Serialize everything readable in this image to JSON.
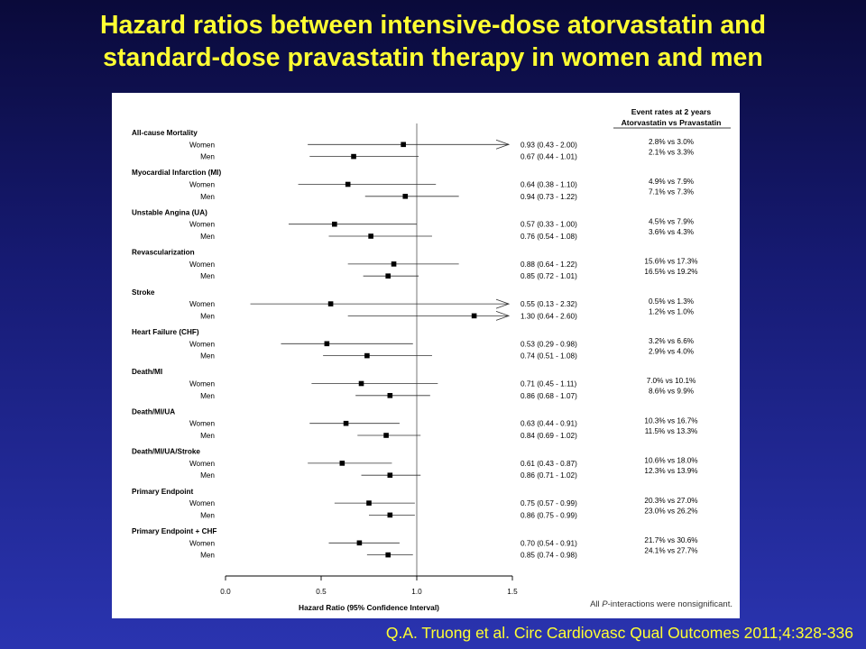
{
  "title": {
    "line1": "Hazard ratios between intensive-dose atorvastatin and",
    "line2": "standard-dose pravastatin therapy in women and men"
  },
  "citation": "Q.A. Truong et al. Circ Cardiovasc Qual Outcomes 2011;4:328-336",
  "colors": {
    "title": "#ffff33",
    "background_top": "#0a0a3a",
    "background_bottom": "#2a34b0",
    "panel": "#ffffff",
    "ink": "#000000"
  },
  "chart_data": {
    "type": "forest",
    "xlabel": "Hazard Ratio (95% Confidence Interval)",
    "xlim": [
      0.0,
      1.5
    ],
    "xticks": [
      "0.0",
      "0.5",
      "1.0",
      "1.5"
    ],
    "reference_line": 1.0,
    "event_rates_header": [
      "Event rates at 2 years",
      "Atorvastatin vs Pravastatin"
    ],
    "footnote_prefix": "All ",
    "footnote_italic": "P",
    "footnote_suffix": "-interactions  were nonsignificant.",
    "groups": [
      {
        "name": "All-cause Mortality",
        "rows": [
          {
            "label": "Women",
            "hr": 0.93,
            "lo": 0.43,
            "hi": 2.0,
            "ci_text": "0.93 (0.43 - 2.00)",
            "rates": "2.8% vs 3.0%",
            "arrow": true
          },
          {
            "label": "Men",
            "hr": 0.67,
            "lo": 0.44,
            "hi": 1.01,
            "ci_text": "0.67 (0.44 - 1.01)",
            "rates": "2.1% vs 3.3%"
          }
        ]
      },
      {
        "name": "Myocardial Infarction (MI)",
        "rows": [
          {
            "label": "Women",
            "hr": 0.64,
            "lo": 0.38,
            "hi": 1.1,
            "ci_text": "0.64 (0.38 - 1.10)",
            "rates": "4.9% vs 7.9%"
          },
          {
            "label": "Men",
            "hr": 0.94,
            "lo": 0.73,
            "hi": 1.22,
            "ci_text": "0.94 (0.73 - 1.22)",
            "rates": "7.1% vs 7.3%"
          }
        ]
      },
      {
        "name": "Unstable Angina (UA)",
        "rows": [
          {
            "label": "Women",
            "hr": 0.57,
            "lo": 0.33,
            "hi": 1.0,
            "ci_text": "0.57 (0.33 - 1.00)",
            "rates": "4.5% vs 7.9%"
          },
          {
            "label": "Men",
            "hr": 0.76,
            "lo": 0.54,
            "hi": 1.08,
            "ci_text": "0.76 (0.54 - 1.08)",
            "rates": "3.6% vs 4.3%"
          }
        ]
      },
      {
        "name": "Revascularization",
        "rows": [
          {
            "label": "Women",
            "hr": 0.88,
            "lo": 0.64,
            "hi": 1.22,
            "ci_text": "0.88 (0.64 - 1.22)",
            "rates": "15.6% vs 17.3%"
          },
          {
            "label": "Men",
            "hr": 0.85,
            "lo": 0.72,
            "hi": 1.01,
            "ci_text": "0.85 (0.72 - 1.01)",
            "rates": "16.5% vs 19.2%"
          }
        ]
      },
      {
        "name": "Stroke",
        "rows": [
          {
            "label": "Women",
            "hr": 0.55,
            "lo": 0.13,
            "hi": 2.32,
            "ci_text": "0.55 (0.13 - 2.32)",
            "rates": "0.5% vs 1.3%",
            "arrow": true
          },
          {
            "label": "Men",
            "hr": 1.3,
            "lo": 0.64,
            "hi": 2.6,
            "ci_text": "1.30 (0.64 - 2.60)",
            "rates": "1.2% vs 1.0%",
            "arrow": true
          }
        ]
      },
      {
        "name": "Heart Failure (CHF)",
        "rows": [
          {
            "label": "Women",
            "hr": 0.53,
            "lo": 0.29,
            "hi": 0.98,
            "ci_text": "0.53 (0.29 - 0.98)",
            "rates": "3.2% vs 6.6%"
          },
          {
            "label": "Men",
            "hr": 0.74,
            "lo": 0.51,
            "hi": 1.08,
            "ci_text": "0.74 (0.51 - 1.08)",
            "rates": "2.9% vs 4.0%"
          }
        ]
      },
      {
        "name": "Death/MI",
        "rows": [
          {
            "label": "Women",
            "hr": 0.71,
            "lo": 0.45,
            "hi": 1.11,
            "ci_text": "0.71 (0.45 - 1.11)",
            "rates": "7.0% vs 10.1%"
          },
          {
            "label": "Men",
            "hr": 0.86,
            "lo": 0.68,
            "hi": 1.07,
            "ci_text": "0.86 (0.68 - 1.07)",
            "rates": "8.6% vs  9.9%"
          }
        ]
      },
      {
        "name": "Death/MI/UA",
        "rows": [
          {
            "label": "Women",
            "hr": 0.63,
            "lo": 0.44,
            "hi": 0.91,
            "ci_text": "0.63 (0.44 - 0.91)",
            "rates": "10.3% vs 16.7%"
          },
          {
            "label": "Men",
            "hr": 0.84,
            "lo": 0.69,
            "hi": 1.02,
            "ci_text": "0.84 (0.69 - 1.02)",
            "rates": "11.5% vs 13.3%"
          }
        ]
      },
      {
        "name": "Death/MI/UA/Stroke",
        "rows": [
          {
            "label": "Women",
            "hr": 0.61,
            "lo": 0.43,
            "hi": 0.87,
            "ci_text": "0.61 (0.43 - 0.87)",
            "rates": "10.6% vs 18.0%"
          },
          {
            "label": "Men",
            "hr": 0.86,
            "lo": 0.71,
            "hi": 1.02,
            "ci_text": "0.86 (0.71 - 1.02)",
            "rates": "12.3% vs 13.9%"
          }
        ]
      },
      {
        "name": "Primary Endpoint",
        "rows": [
          {
            "label": "Women",
            "hr": 0.75,
            "lo": 0.57,
            "hi": 0.99,
            "ci_text": "0.75 (0.57 - 0.99)",
            "rates": "20.3% vs 27.0%"
          },
          {
            "label": "Men",
            "hr": 0.86,
            "lo": 0.75,
            "hi": 0.99,
            "ci_text": "0.86 (0.75 - 0.99)",
            "rates": "23.0% vs 26.2%"
          }
        ]
      },
      {
        "name": "Primary Endpoint + CHF",
        "rows": [
          {
            "label": "Women",
            "hr": 0.7,
            "lo": 0.54,
            "hi": 0.91,
            "ci_text": "0.70 (0.54 - 0.91)",
            "rates": "21.7% vs 30.6%"
          },
          {
            "label": "Men",
            "hr": 0.85,
            "lo": 0.74,
            "hi": 0.98,
            "ci_text": "0.85 (0.74 - 0.98)",
            "rates": "24.1% vs 27.7%"
          }
        ]
      }
    ]
  }
}
